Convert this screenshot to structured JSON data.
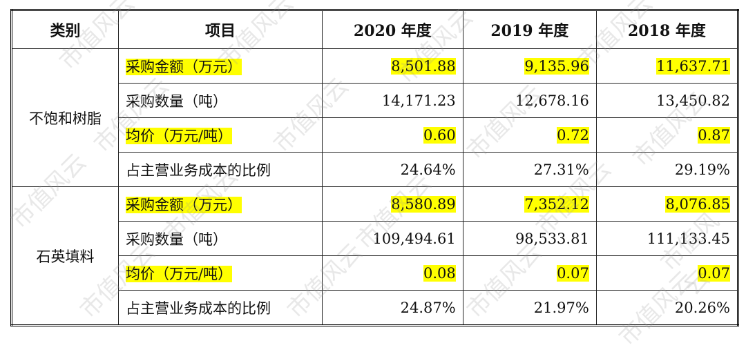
{
  "headers": [
    "类别",
    "项目",
    "2020 年度",
    "2019 年度",
    "2018 年度"
  ],
  "groups": [
    {
      "category": "不饱和树脂",
      "rows": [
        {
          "item": "采购金额（万元）",
          "values": [
            "8,501.88",
            "9,135.96",
            "11,637.71"
          ],
          "highlight": true
        },
        {
          "item": "采购数量（吨）",
          "values": [
            "14,171.23",
            "12,678.16",
            "13,450.82"
          ],
          "highlight": false
        },
        {
          "item": "均价（万元/吨）",
          "values": [
            "0.60",
            "0.72",
            "0.87"
          ],
          "highlight": true
        },
        {
          "item": "占主营业务成本的比例",
          "values": [
            "24.64%",
            "27.31%",
            "29.19%"
          ],
          "highlight": false
        }
      ]
    },
    {
      "category": "石英填料",
      "rows": [
        {
          "item": "采购金额（万元）",
          "values": [
            "8,580.89",
            "7,352.12",
            "8,076.85"
          ],
          "highlight": true
        },
        {
          "item": "采购数量（吨）",
          "values": [
            "109,494.61",
            "98,533.81",
            "111,133.45"
          ],
          "highlight": false
        },
        {
          "item": "均价（万元/吨）",
          "values": [
            "0.08",
            "0.07",
            "0.07"
          ],
          "highlight": true
        },
        {
          "item": "占主营业务成本的比例",
          "values": [
            "24.87%",
            "21.97%",
            "20.26%"
          ],
          "highlight": false
        }
      ]
    }
  ],
  "watermark": "市值风云",
  "highlight_color": "#ffff00"
}
